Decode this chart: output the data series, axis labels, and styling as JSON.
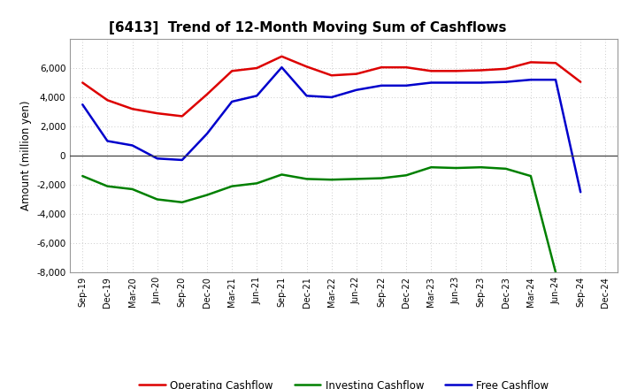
{
  "title": "[6413]  Trend of 12-Month Moving Sum of Cashflows",
  "ylabel": "Amount (million yen)",
  "xlabels": [
    "Sep-19",
    "Dec-19",
    "Mar-20",
    "Jun-20",
    "Sep-20",
    "Dec-20",
    "Mar-21",
    "Jun-21",
    "Sep-21",
    "Dec-21",
    "Mar-22",
    "Jun-22",
    "Sep-22",
    "Dec-22",
    "Mar-23",
    "Jun-23",
    "Sep-23",
    "Dec-23",
    "Mar-24",
    "Jun-24",
    "Sep-24",
    "Dec-24"
  ],
  "operating": [
    5000,
    3800,
    3200,
    2900,
    2700,
    4200,
    5800,
    6000,
    6800,
    6100,
    5500,
    5600,
    6050,
    6050,
    5800,
    5800,
    5850,
    5950,
    6400,
    6350,
    5050,
    null
  ],
  "investing": [
    -1400,
    -2100,
    -2300,
    -3000,
    -3200,
    -2700,
    -2100,
    -1900,
    -1300,
    -1600,
    -1650,
    -1600,
    -1550,
    -1350,
    -800,
    -850,
    -800,
    -900,
    -1400,
    -8000,
    null,
    null
  ],
  "free": [
    3500,
    1000,
    700,
    -200,
    -300,
    1500,
    3700,
    4100,
    6050,
    4100,
    4000,
    4500,
    4800,
    4800,
    5000,
    5000,
    5000,
    5050,
    5200,
    5200,
    -2500,
    null
  ],
  "ylim": [
    -8000,
    8000
  ],
  "yticks": [
    -8000,
    -6000,
    -4000,
    -2000,
    0,
    2000,
    4000,
    6000
  ],
  "colors": {
    "operating": "#dd0000",
    "investing": "#008000",
    "free": "#0000cc"
  },
  "background_color": "#ffffff",
  "grid_color": "#bbbbbb",
  "linewidth": 1.8
}
